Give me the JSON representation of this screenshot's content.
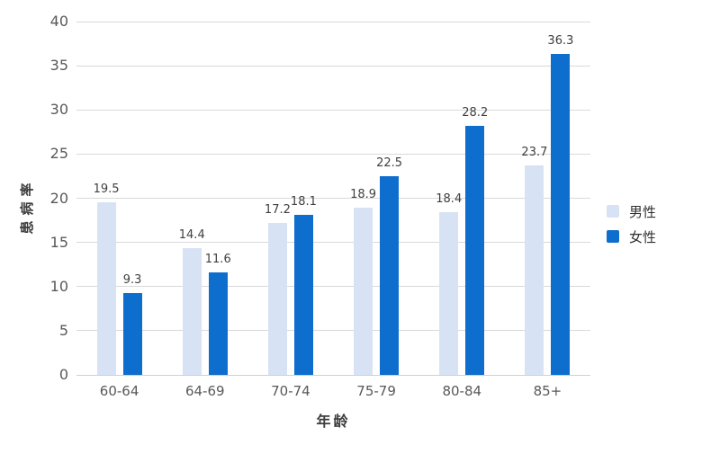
{
  "chart_data": {
    "type": "bar",
    "categories": [
      "60-64",
      "64-69",
      "70-74",
      "75-79",
      "80-84",
      "85+"
    ],
    "series": [
      {
        "name": "男性",
        "color": "#d7e3f5",
        "values": [
          19.5,
          14.4,
          17.2,
          18.9,
          18.4,
          23.7
        ]
      },
      {
        "name": "女性",
        "color": "#0e6ecd",
        "values": [
          9.3,
          11.6,
          18.1,
          22.5,
          28.2,
          36.3
        ]
      }
    ],
    "title": "",
    "xlabel": "年龄",
    "ylabel": "患病率",
    "ylim": [
      0,
      40
    ],
    "ytick_step": 5,
    "ytick_labels": [
      "0",
      "5",
      "10",
      "15",
      "20",
      "25",
      "30",
      "35",
      "40"
    ],
    "grid": "horizontal",
    "legend_position": "right",
    "value_labels": true,
    "colors": {
      "background": "#ffffff",
      "gridline": "#d9d9d9",
      "baseline": "#d0d0d0",
      "tick_text": "#595959",
      "value_label_text": "#404040",
      "axis_title_text": "#3d3d3d",
      "legend_text": "#303030"
    }
  }
}
